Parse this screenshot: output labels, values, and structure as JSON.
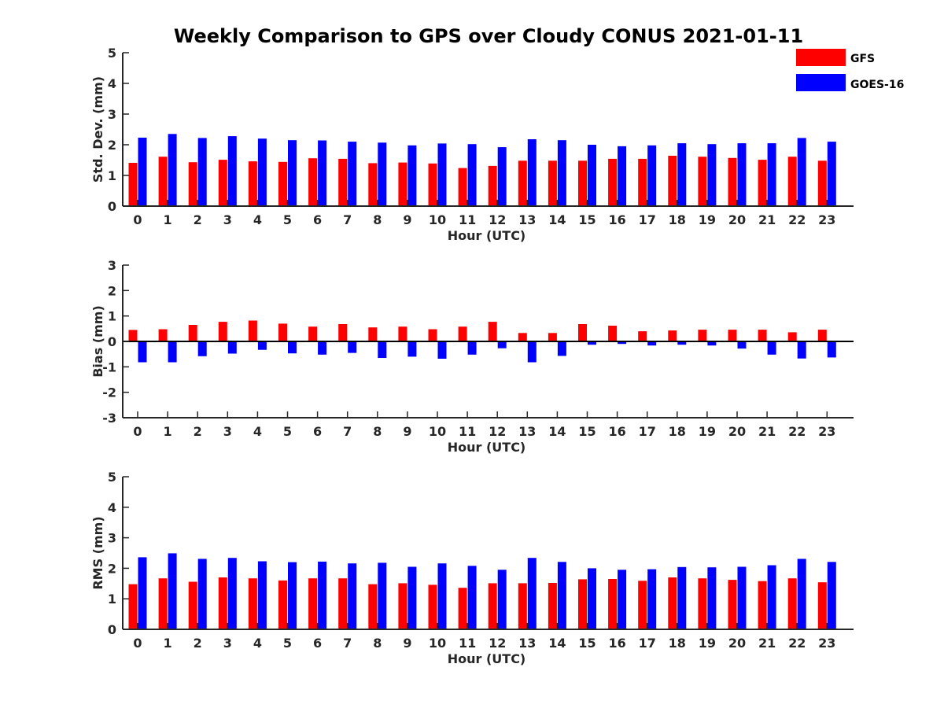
{
  "chart_data": {
    "title": "Weekly Comparison to GPS over Cloudy CONUS 2021-01-11",
    "type": "bar",
    "legend": {
      "placement": "top-right",
      "entries": [
        {
          "name": "GFS",
          "color": "#ff0000"
        },
        {
          "name": "GOES-16",
          "color": "#0000ff"
        }
      ]
    },
    "categories": [
      "0",
      "1",
      "2",
      "3",
      "4",
      "5",
      "6",
      "7",
      "8",
      "9",
      "10",
      "11",
      "12",
      "13",
      "14",
      "15",
      "16",
      "17",
      "18",
      "19",
      "20",
      "21",
      "22",
      "23"
    ],
    "panels": [
      {
        "ylabel": "Std. Dev. (mm)",
        "xlabel": "Hour (UTC)",
        "ylim": [
          0,
          5
        ],
        "yticks": [
          "0",
          "1",
          "2",
          "3",
          "4",
          "5"
        ],
        "series": [
          {
            "name": "GFS",
            "color": "#ff0000",
            "values": [
              1.41,
              1.61,
              1.43,
              1.51,
              1.46,
              1.44,
              1.56,
              1.54,
              1.4,
              1.42,
              1.39,
              1.24,
              1.31,
              1.48,
              1.48,
              1.48,
              1.54,
              1.54,
              1.64,
              1.61,
              1.57,
              1.51,
              1.61,
              1.48
            ]
          },
          {
            "name": "GOES-16",
            "color": "#0000ff",
            "values": [
              2.23,
              2.35,
              2.22,
              2.28,
              2.2,
              2.15,
              2.14,
              2.1,
              2.07,
              1.98,
              2.04,
              2.02,
              1.92,
              2.18,
              2.15,
              2.0,
              1.95,
              1.98,
              2.05,
              2.02,
              2.05,
              2.05,
              2.22,
              2.1
            ]
          }
        ]
      },
      {
        "ylabel": "Bias (mm)",
        "xlabel": "Hour (UTC)",
        "ylim": [
          -3,
          3
        ],
        "yticks": [
          "-3",
          "-2",
          "-1",
          "0",
          "1",
          "2",
          "3"
        ],
        "series": [
          {
            "name": "GFS",
            "color": "#ff0000",
            "values": [
              0.45,
              0.48,
              0.65,
              0.77,
              0.82,
              0.7,
              0.58,
              0.68,
              0.55,
              0.58,
              0.48,
              0.58,
              0.77,
              0.33,
              0.33,
              0.68,
              0.62,
              0.4,
              0.43,
              0.46,
              0.46,
              0.46,
              0.36,
              0.46
            ]
          },
          {
            "name": "GOES-16",
            "color": "#0000ff",
            "values": [
              -0.82,
              -0.82,
              -0.58,
              -0.48,
              -0.33,
              -0.47,
              -0.52,
              -0.45,
              -0.65,
              -0.6,
              -0.68,
              -0.52,
              -0.27,
              -0.82,
              -0.57,
              -0.13,
              -0.1,
              -0.16,
              -0.13,
              -0.16,
              -0.28,
              -0.52,
              -0.67,
              -0.63
            ]
          }
        ]
      },
      {
        "ylabel": "RMS (mm)",
        "xlabel": "Hour (UTC)",
        "ylim": [
          0,
          5
        ],
        "yticks": [
          "0",
          "1",
          "2",
          "3",
          "4",
          "5"
        ],
        "series": [
          {
            "name": "GFS",
            "color": "#ff0000",
            "values": [
              1.48,
              1.67,
              1.56,
              1.7,
              1.67,
              1.6,
              1.67,
              1.67,
              1.48,
              1.51,
              1.46,
              1.36,
              1.51,
              1.51,
              1.52,
              1.64,
              1.65,
              1.59,
              1.7,
              1.67,
              1.62,
              1.58,
              1.67,
              1.54
            ]
          },
          {
            "name": "GOES-16",
            "color": "#0000ff",
            "values": [
              2.36,
              2.49,
              2.31,
              2.34,
              2.23,
              2.2,
              2.22,
              2.16,
              2.18,
              2.05,
              2.16,
              2.08,
              1.95,
              2.34,
              2.21,
              2.0,
              1.95,
              1.97,
              2.04,
              2.03,
              2.05,
              2.1,
              2.31,
              2.21
            ]
          }
        ]
      }
    ]
  }
}
